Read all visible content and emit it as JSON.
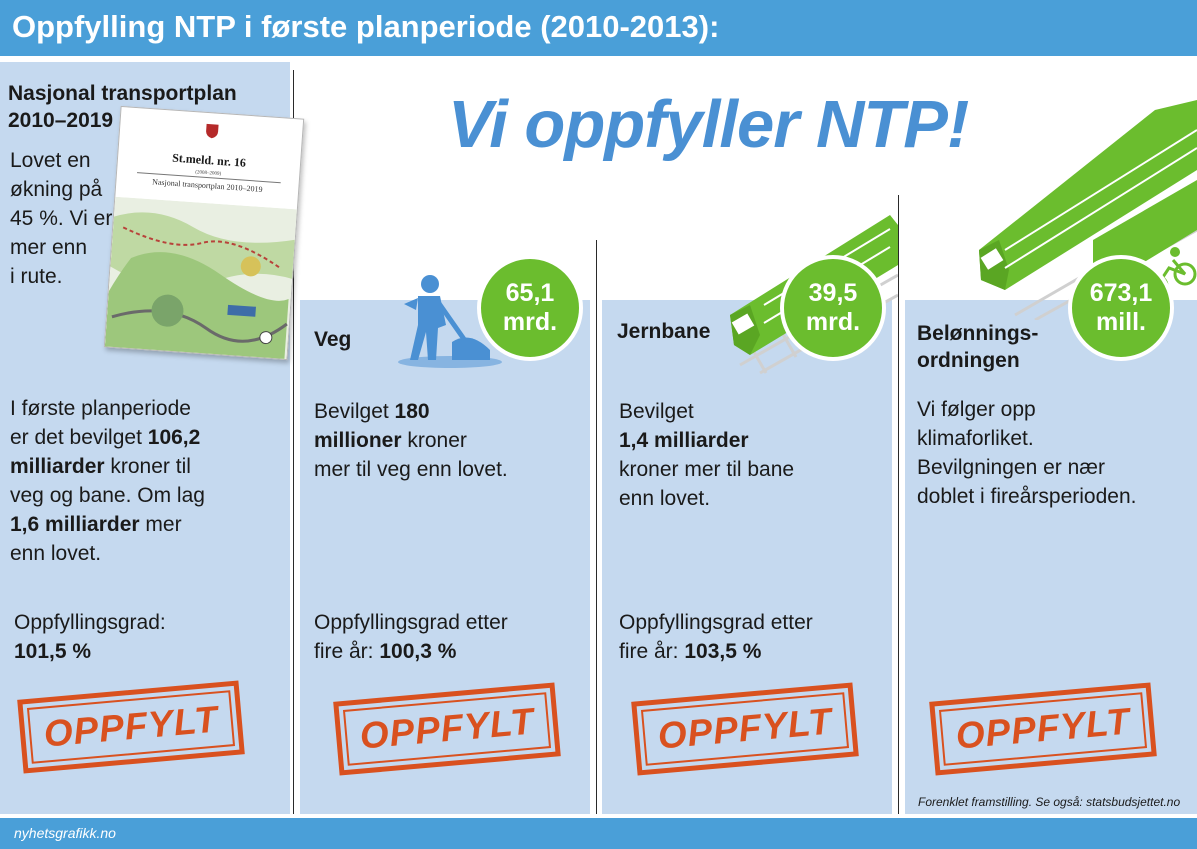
{
  "header": {
    "title": "Oppfylling NTP i første planperiode (2010-2013):"
  },
  "headline": "Vi oppfyller NTP!",
  "colors": {
    "bar_blue": "#4a9fd8",
    "panel_blue": "#c5d9ef",
    "headline_blue": "#4a90d3",
    "green": "#6bbd2e",
    "stamp_orange": "#d9511f"
  },
  "ntp": {
    "title_line1": "Nasjonal transportplan",
    "title_line2": "2010–2019",
    "promise_lines": [
      "Lovet en",
      "økning på",
      "45 %. Vi er",
      "mer enn",
      "i rute."
    ],
    "doc_title": "St.meld. nr. 16",
    "doc_years": "(2008–2009)",
    "doc_name": "Nasjonal transportplan 2010–2019",
    "summary": {
      "l1": "I første planperiode",
      "l2a": "er det bevilget ",
      "l2b": "106,2",
      "l3a": "milliarder",
      "l3b": " kroner til",
      "l4": "veg og bane. Om lag",
      "l5a": "1,6 milliarder",
      "l5b": " mer",
      "l6": "enn lovet."
    },
    "grade_label": "Oppfyllingsgrad:",
    "grade_value": "101,5 %",
    "stamp": "OPPFYLT"
  },
  "veg": {
    "category": "Veg",
    "icon": "road-worker-icon",
    "amount_line1": "65,1",
    "amount_line2": "mrd.",
    "body": {
      "l1a": "Bevilget ",
      "l1b": "180",
      "l2a": "millioner",
      "l2b": " kroner",
      "l3": "mer til veg enn lovet."
    },
    "grade_line1": "Oppfyllingsgrad etter",
    "grade_line2a": "fire år: ",
    "grade_value": "100,3 %",
    "stamp": "OPPFYLT"
  },
  "jernbane": {
    "category": "Jernbane",
    "icon": "train-icon",
    "amount_line1": "39,5",
    "amount_line2": "mrd.",
    "body": {
      "l1": "Bevilget",
      "l2": "1,4 milliarder",
      "l3": "kroner mer til bane",
      "l4": "enn lovet."
    },
    "grade_line1": "Oppfyllingsgrad etter",
    "grade_line2a": "fire år: ",
    "grade_value": "103,5 %",
    "stamp": "OPPFYLT"
  },
  "belonning": {
    "category_line1": "Belønnings-",
    "category_line2": "ordningen",
    "icon": "tram-bicycle-icon",
    "amount_line1": "673,1",
    "amount_line2": "mill.",
    "body": {
      "l1": "Vi følger opp",
      "l2": "klimaforliket.",
      "l3": "Bevilgningen er nær",
      "l4": "doblet i fireårsperioden."
    },
    "stamp": "OPPFYLT"
  },
  "footnote": "Forenklet framstilling. Se også: statsbudsjettet.no",
  "credit": "nyhetsgrafikk.no"
}
